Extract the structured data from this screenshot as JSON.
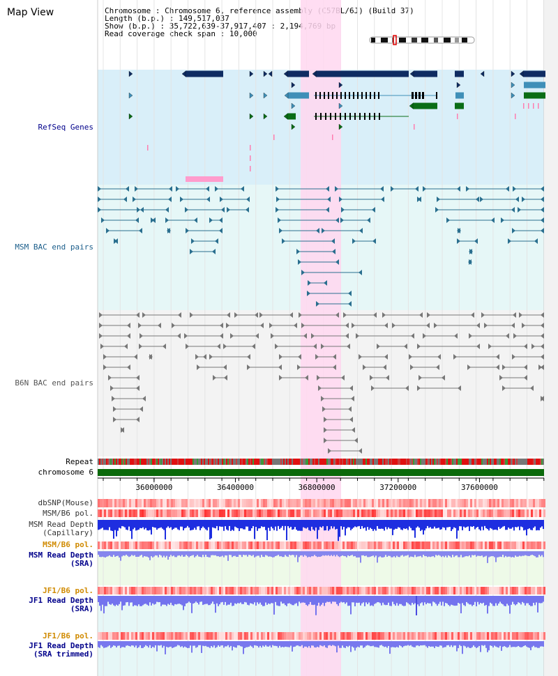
{
  "page": {
    "title": "Map View"
  },
  "header": {
    "lines": [
      {
        "key": "Chromosome",
        "value": "Chromosome 6, reference assembly (C57BL/6J) (Build 37)"
      },
      {
        "key": "Length (b.p.)",
        "value": "149,517,037"
      },
      {
        "key": "Show (b.p.)",
        "value": "35,722,639-37,917,407 : 2,194,769 bp"
      },
      {
        "key": "Read coverage check span",
        "value": "10,000"
      }
    ]
  },
  "tracks": {
    "refseq": "RefSeq Genes",
    "msm_bac": "MSM BAC end pairs",
    "b6n_bac": "B6N BAC end pairs",
    "repeat": "Repeat",
    "chrom": "chromosome 6",
    "dbsnp": "dbSNP(Mouse)",
    "msm_b6_pol_1": "MSM/B6 pol.",
    "msm_depth_cap": "MSM Read Depth\n(Capillary)",
    "msm_b6_pol_2": "MSM/B6 pol.",
    "msm_depth_sra": "MSM Read Depth\n(SRA)",
    "jf1_b6_pol_1": "JF1/B6 pol.",
    "jf1_depth_sra": "JF1 Read Depth\n(SRA)",
    "jf1_b6_pol_2": "JF1/B6 pol.",
    "jf1_depth_trim": "JF1 Read Depth\n(SRA trimmed)"
  },
  "axis": {
    "range": [
      35722639,
      37917407
    ],
    "ticks": [
      {
        "value": 36000000,
        "label": "36000000"
      },
      {
        "value": 36400000,
        "label": "36400000"
      },
      {
        "value": 36800000,
        "label": "36800000"
      },
      {
        "value": 37200000,
        "label": "37200000"
      },
      {
        "value": 37600000,
        "label": "37600000"
      }
    ]
  },
  "colors": {
    "refseq_bg": "#d9eff9",
    "bac_bg": "#e6f7f7",
    "b6n_bg": "#f3f3f3",
    "highlight": "#ffd7f0",
    "gene_dark": "#0f2c62",
    "gene_mid": "#3f8fb8",
    "gene_green": "#0a6d16",
    "chrom_bar": "#0b6a0b",
    "label_blue": "#00008b",
    "label_teal": "#1a5d8a",
    "label_orange": "#d08a00"
  }
}
